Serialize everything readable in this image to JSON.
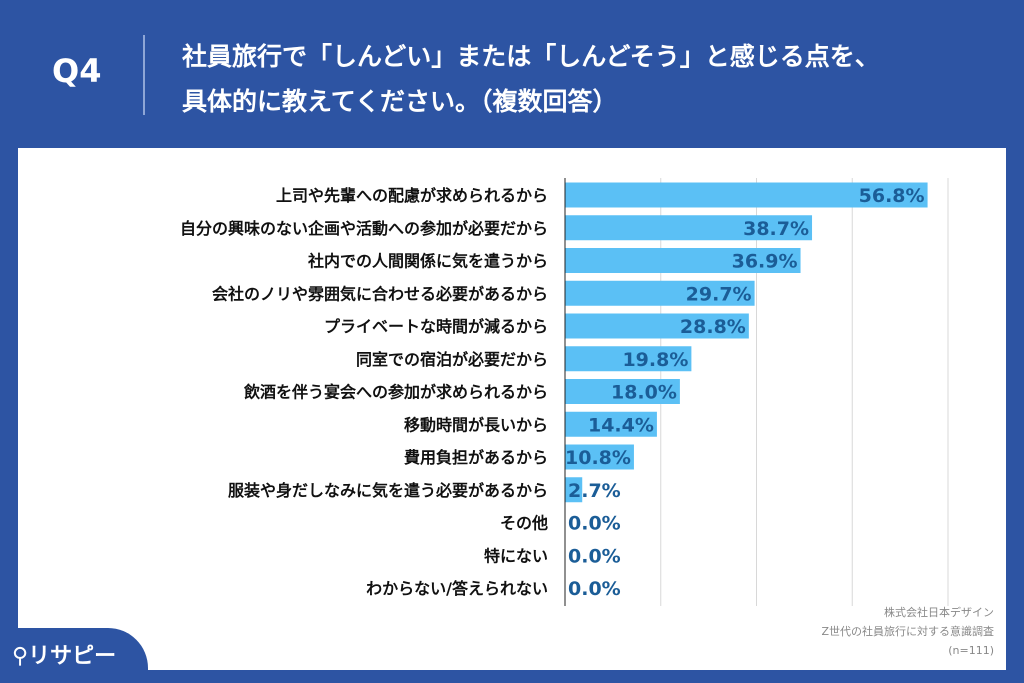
{
  "header": {
    "q": "Q4",
    "title_line1": "社員旅行で「しんどい」または「しんどそう」と感じる点を、",
    "title_line2": "具体的に教えてください。（複数回答）"
  },
  "source": {
    "company": "株式会社日本デザイン",
    "survey": "Z世代の社員旅行に対する意識調査",
    "n": "(n=111)"
  },
  "logo": "リサピー",
  "chart_data": {
    "type": "bar",
    "orientation": "horizontal",
    "categories": [
      "上司や先輩への配慮が求められるから",
      "自分の興味のない企画や活動への参加が必要だから",
      "社内での人間関係に気を遣うから",
      "会社のノリや雰囲気に合わせる必要があるから",
      "プライベートな時間が減るから",
      "同室での宿泊が必要だから",
      "飲酒を伴う宴会への参加が求められるから",
      "移動時間が長いから",
      "費用負担があるから",
      "服装や身だしなみに気を遣う必要があるから",
      "その他",
      "特にない",
      "わからない/答えられない"
    ],
    "values": [
      56.8,
      38.7,
      36.9,
      29.7,
      28.8,
      19.8,
      18.0,
      14.4,
      10.8,
      2.7,
      0.0,
      0.0,
      0.0
    ],
    "labels": [
      "56.8%",
      "38.7%",
      "36.9%",
      "29.7%",
      "28.8%",
      "19.8%",
      "18.0%",
      "14.4%",
      "10.8%",
      "2.7%",
      "0.0%",
      "0.0%",
      "0.0%"
    ],
    "xlim": [
      0,
      60
    ],
    "grid": true,
    "gridlines": [
      15,
      30,
      45,
      60
    ],
    "bar_color": "#5bc0f5",
    "unit": "%"
  }
}
